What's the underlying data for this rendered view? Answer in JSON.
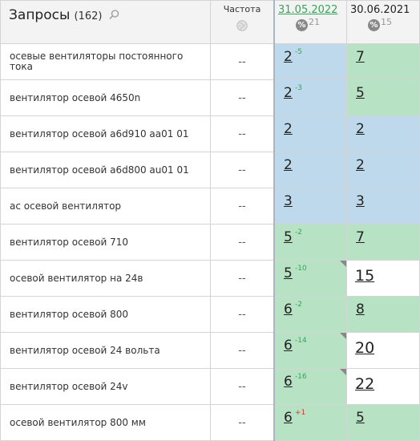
{
  "header": {
    "title": "Запросы",
    "count": "(162)",
    "search_icon": "search-icon",
    "frequency_label": "Частота",
    "frequency_icon": "globe-icon",
    "dates": [
      {
        "date": "31.05.2022",
        "percent": "21",
        "active": true
      },
      {
        "date": "30.06.2021",
        "percent": "15",
        "active": false
      }
    ]
  },
  "rows": [
    {
      "query": "осевые вентиляторы постоянного тока",
      "freq": "--",
      "p1": "2",
      "d1": "-5",
      "d1_color": "green",
      "p2": "7",
      "c1": "blue",
      "c2": "green"
    },
    {
      "query": "вентилятор осевой 4650n",
      "freq": "--",
      "p1": "2",
      "d1": "-3",
      "d1_color": "green",
      "p2": "5",
      "c1": "blue",
      "c2": "green"
    },
    {
      "query": "вентилятор осевой a6d910 aa01 01",
      "freq": "--",
      "p1": "2",
      "d1": "",
      "p2": "2",
      "c1": "blue",
      "c2": "blue"
    },
    {
      "query": "вентилятор осевой a6d800 au01 01",
      "freq": "--",
      "p1": "2",
      "d1": "",
      "p2": "2",
      "c1": "blue",
      "c2": "blue"
    },
    {
      "query": "ac осевой вентилятор",
      "freq": "--",
      "p1": "3",
      "d1": "",
      "p2": "3",
      "c1": "blue",
      "c2": "blue"
    },
    {
      "query": "вентилятор осевой 710",
      "freq": "--",
      "p1": "5",
      "d1": "-2",
      "d1_color": "green",
      "p2": "7",
      "c1": "green",
      "c2": "green"
    },
    {
      "query": "осевой вентилятор на 24в",
      "freq": "--",
      "p1": "5",
      "d1": "-10",
      "d1_color": "green",
      "p2": "15",
      "c1": "green",
      "c2": "white",
      "tri": true
    },
    {
      "query": "вентилятор осевой 800",
      "freq": "--",
      "p1": "6",
      "d1": "-2",
      "d1_color": "green",
      "p2": "8",
      "c1": "green",
      "c2": "green"
    },
    {
      "query": "вентилятор осевой 24 вольта",
      "freq": "--",
      "p1": "6",
      "d1": "-14",
      "d1_color": "green",
      "p2": "20",
      "c1": "green",
      "c2": "white",
      "tri": true
    },
    {
      "query": "вентилятор осевой 24v",
      "freq": "--",
      "p1": "6",
      "d1": "-16",
      "d1_color": "green",
      "p2": "22",
      "c1": "green",
      "c2": "white",
      "tri": true
    },
    {
      "query": "осевой вентилятор 800 мм",
      "freq": "--",
      "p1": "6",
      "d1": "+1",
      "d1_color": "red",
      "p2": "5",
      "c1": "green",
      "c2": "green"
    }
  ],
  "colors": {
    "blue": "#bfd9ec",
    "green": "#b8e2c4",
    "white": "#ffffff",
    "delta_up": "#35a35a",
    "delta_down": "#d33333"
  }
}
